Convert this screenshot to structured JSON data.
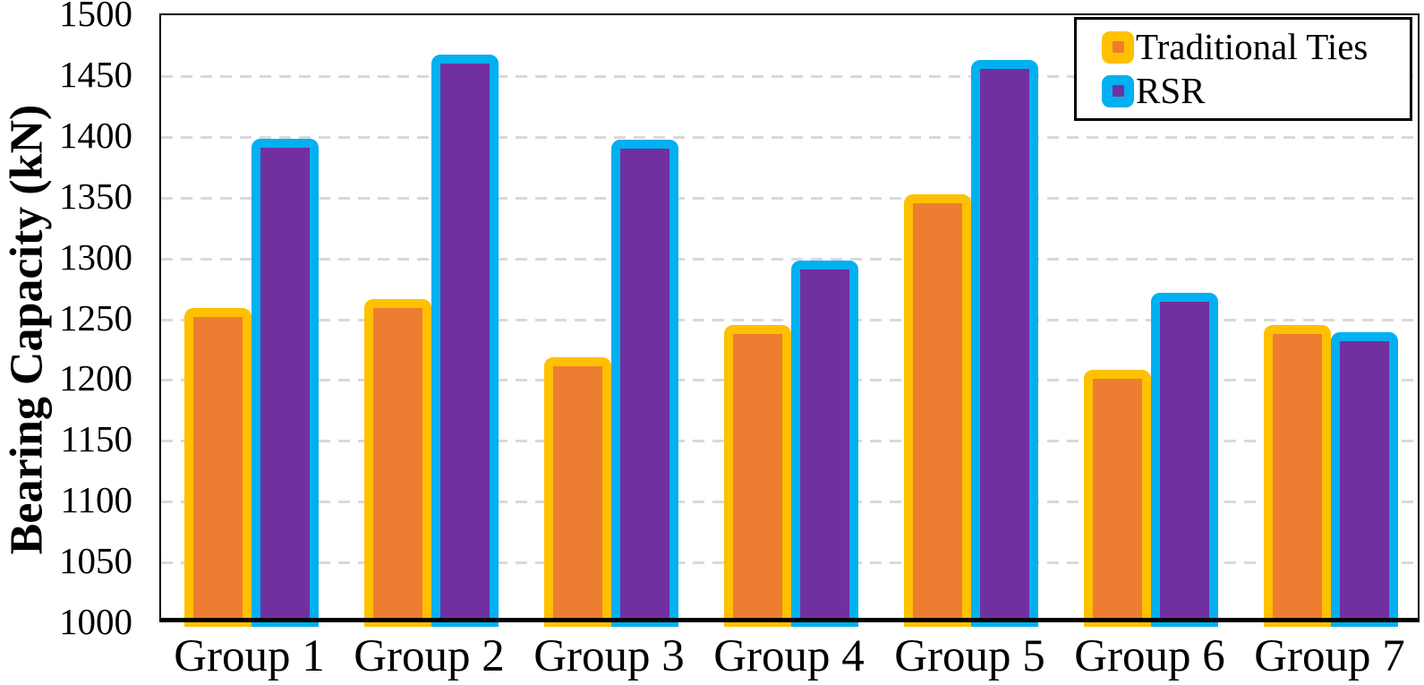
{
  "chart_data": {
    "type": "bar",
    "title": "",
    "xlabel": "",
    "ylabel": "Bearing Capacity (kN)",
    "ylim": [
      1000,
      1500
    ],
    "ytick_step": 50,
    "yticks": [
      1000,
      1050,
      1100,
      1150,
      1200,
      1250,
      1300,
      1350,
      1400,
      1450,
      1500
    ],
    "grid": "horizontal-dashed",
    "legend_position": "top-right",
    "categories": [
      "Group 1",
      "Group 2",
      "Group 3",
      "Group 4",
      "Group 5",
      "Group 6",
      "Group 7"
    ],
    "series": [
      {
        "name": "Traditional Ties",
        "fill_color": "#ED7D31",
        "border_color": "#FFC000",
        "values": [
          1258,
          1265,
          1217,
          1244,
          1351,
          1207,
          1244
        ]
      },
      {
        "name": "RSR",
        "fill_color": "#7030A0",
        "border_color": "#00B0F0",
        "values": [
          1397,
          1466,
          1396,
          1297,
          1462,
          1270,
          1238
        ]
      }
    ]
  },
  "colors": {
    "gridline": "#D9D9D9",
    "axis": "#000000",
    "background": "#FFFFFF"
  },
  "legend": {
    "items": [
      {
        "label": "Traditional Ties"
      },
      {
        "label": "RSR"
      }
    ]
  }
}
